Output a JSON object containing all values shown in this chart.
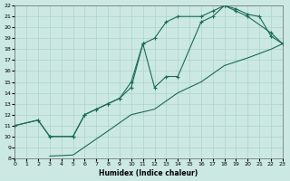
{
  "xlabel": "Humidex (Indice chaleur)",
  "bg_color": "#cce8e2",
  "grid_color": "#aad4cc",
  "line_color": "#1a6b5a",
  "xlim": [
    0,
    23
  ],
  "ylim": [
    8,
    22
  ],
  "xticks": [
    0,
    1,
    2,
    3,
    4,
    5,
    6,
    7,
    8,
    9,
    10,
    11,
    12,
    13,
    14,
    15,
    16,
    17,
    18,
    19,
    20,
    21,
    22,
    23
  ],
  "yticks": [
    8,
    9,
    10,
    11,
    12,
    13,
    14,
    15,
    16,
    17,
    18,
    19,
    20,
    21,
    22
  ],
  "line1_x": [
    0,
    2,
    3,
    5,
    6,
    7,
    8,
    9,
    10,
    11,
    12,
    13,
    14,
    16,
    17,
    18,
    19,
    20,
    21,
    22,
    23
  ],
  "line1_y": [
    11,
    11.5,
    10,
    10,
    12,
    12.5,
    13,
    13.5,
    15,
    18.5,
    19,
    20.5,
    21,
    21,
    21.5,
    22,
    21.7,
    21.2,
    21.0,
    19.2,
    18.5
  ],
  "line2_x": [
    0,
    2,
    3,
    5,
    6,
    7,
    8,
    9,
    10,
    11,
    12,
    13,
    14,
    16,
    17,
    18,
    19,
    20,
    22,
    23
  ],
  "line2_y": [
    11,
    11.5,
    10,
    10,
    12,
    12.5,
    13,
    13.5,
    14.5,
    18.5,
    14.5,
    15.5,
    15.5,
    20.5,
    21.0,
    22,
    21.5,
    21.0,
    19.5,
    18.5
  ],
  "line3_x": [
    3,
    5,
    8,
    10,
    12,
    14,
    16,
    18,
    20,
    22,
    23
  ],
  "line3_y": [
    8.2,
    8.3,
    10.5,
    12.0,
    12.5,
    14.0,
    15.0,
    16.5,
    17.2,
    18.0,
    18.5
  ]
}
